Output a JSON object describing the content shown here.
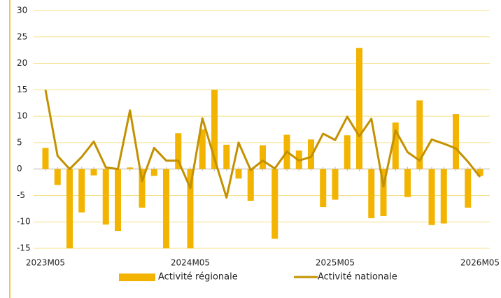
{
  "chart_data": {
    "type": "bar-line",
    "categories": [
      "2023M05",
      null,
      null,
      null,
      null,
      null,
      null,
      null,
      null,
      null,
      null,
      null,
      "2024M05",
      null,
      null,
      null,
      null,
      null,
      null,
      null,
      null,
      null,
      null,
      null,
      "2025M05",
      null,
      null,
      null,
      null,
      null,
      null,
      null,
      null,
      null,
      null,
      null,
      "2026M05"
    ],
    "series": [
      {
        "name": "Activité régionale",
        "type": "bar",
        "color": "#f2b400",
        "values": [
          4,
          -3,
          -15,
          -8.2,
          -1.2,
          -10.5,
          -11.7,
          0.3,
          -7.3,
          -1.3,
          -15,
          6.8,
          -15,
          7.5,
          15,
          4.6,
          -1.8,
          -6,
          4.5,
          -13.2,
          6.5,
          3.5,
          5.6,
          -7.2,
          -5.8,
          6.4,
          22.9,
          -9.3,
          -8.9,
          8.8,
          -5.3,
          13,
          -10.6,
          -10.3,
          10.4,
          -7.3,
          -1.3
        ]
      },
      {
        "name": "Activité nationale",
        "type": "line",
        "color": "#c39100",
        "values": [
          15,
          2.5,
          0,
          2.3,
          5.2,
          0.3,
          0,
          11.1,
          -2.3,
          4,
          1.6,
          1.6,
          -3.6,
          9.6,
          2,
          -5.4,
          5,
          -0.2,
          1.6,
          0.1,
          3.3,
          1.6,
          2.3,
          6.7,
          5.5,
          9.9,
          6.2,
          9.5,
          -3.3,
          7.3,
          3.2,
          1.6,
          5.6,
          4.8,
          3.9,
          1.4,
          -1.5
        ]
      }
    ],
    "ylim": [
      -15,
      30
    ],
    "yticks": [
      -15,
      -10,
      -5,
      0,
      5,
      10,
      15,
      20,
      25,
      30
    ],
    "grid": true
  }
}
